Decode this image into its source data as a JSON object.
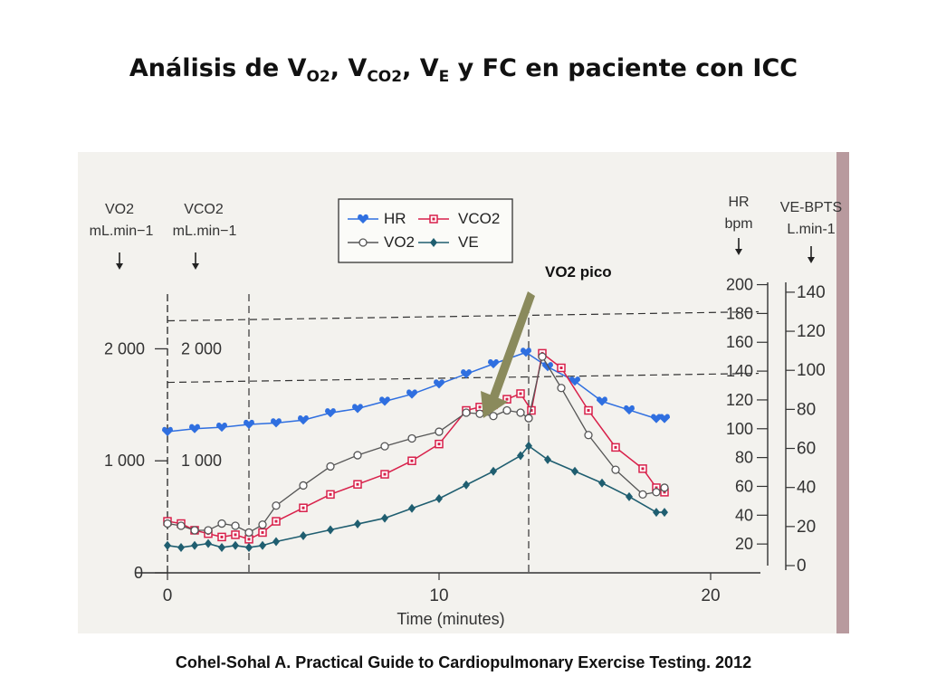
{
  "slide": {
    "title_parts": [
      "Análisis de V",
      "O2",
      ", V",
      "CO2",
      ", V",
      "E",
      " y FC en paciente con ICC"
    ],
    "citation": "Cohel-Sohal A. Practical Guide to Cardiopulmonary Exercise Testing. 2012",
    "annotation": "VO2 pico"
  },
  "colors": {
    "hr": "#2f6fe0",
    "vco2": "#d8204a",
    "vo2": "#555555",
    "ve": "#1f5e70",
    "arrow": "#8a8a5c",
    "scan_bg": "#f3f2ee",
    "page_edge": "#b89a9e"
  },
  "chart_data": {
    "type": "line",
    "xlabel": "Time (minutes)",
    "x_ticks": [
      "0",
      "10",
      "20"
    ],
    "xlim": [
      0,
      22
    ],
    "legend": {
      "placement": "top-center",
      "entries": [
        "HR",
        "VCO2",
        "VO2",
        "VE"
      ]
    },
    "axes": {
      "vo2": {
        "header": [
          "VO2",
          "mL.min−1"
        ],
        "ticks": [
          "2 000",
          "1 000",
          "0"
        ],
        "ylim": [
          0,
          2650
        ]
      },
      "vco2": {
        "header": [
          "VCO2",
          "mL.min−1"
        ],
        "ticks": [
          "2 000",
          "1 000"
        ],
        "ylim": [
          0,
          2650
        ]
      },
      "hr": {
        "header": [
          "HR",
          "bpm"
        ],
        "ticks": [
          "200",
          "180",
          "160",
          "140",
          "120",
          "100",
          "80",
          "60",
          "40",
          "20"
        ],
        "ylim": [
          0,
          206
        ]
      },
      "ve": {
        "header": [
          "VE-BPTS",
          "L.min-1"
        ],
        "ticks": [
          "140",
          "120",
          "100",
          "80",
          "60",
          "40",
          "20",
          "0"
        ],
        "ylim": [
          0,
          152
        ]
      }
    },
    "reference_lines": {
      "x": [
        3,
        13.3
      ],
      "y_vo2": [
        2250,
        1700
      ]
    },
    "series": [
      {
        "name": "HR",
        "axis": "hr",
        "x": [
          0,
          1,
          2,
          3,
          4,
          5,
          6,
          7,
          8,
          9,
          10,
          11,
          12,
          13.2,
          14,
          15,
          16,
          17,
          18,
          18.3
        ],
        "y": [
          98,
          100,
          101,
          103,
          104,
          106,
          111,
          114,
          119,
          124,
          131,
          138,
          145,
          153,
          143,
          133,
          119,
          113,
          107,
          107
        ]
      },
      {
        "name": "VCO2",
        "axis": "vco2",
        "x": [
          0,
          0.5,
          1,
          1.5,
          2,
          2.5,
          3,
          3.5,
          4,
          5,
          6,
          7,
          8,
          9,
          10,
          11,
          11.5,
          12,
          12.5,
          13,
          13.4,
          13.8,
          14.5,
          15.5,
          16.5,
          17.5,
          18,
          18.3
        ],
        "y": [
          460,
          440,
          380,
          350,
          320,
          340,
          300,
          360,
          460,
          580,
          700,
          790,
          880,
          1000,
          1150,
          1450,
          1480,
          1500,
          1550,
          1600,
          1450,
          1960,
          1830,
          1450,
          1120,
          930,
          760,
          720
        ]
      },
      {
        "name": "VO2",
        "axis": "vo2",
        "x": [
          0,
          0.5,
          1,
          1.5,
          2,
          2.5,
          3,
          3.5,
          4,
          5,
          6,
          7,
          8,
          9,
          10,
          11,
          11.5,
          12,
          12.5,
          13,
          13.3,
          13.8,
          14.5,
          15.5,
          16.5,
          17.5,
          18,
          18.3
        ],
        "y": [
          440,
          420,
          380,
          380,
          440,
          420,
          360,
          430,
          600,
          780,
          950,
          1050,
          1130,
          1200,
          1260,
          1430,
          1420,
          1400,
          1450,
          1430,
          1380,
          1930,
          1650,
          1230,
          920,
          700,
          720,
          760
        ]
      },
      {
        "name": "VE",
        "axis": "ve",
        "x": [
          0,
          0.5,
          1,
          1.5,
          2,
          2.5,
          3,
          3.5,
          4,
          5,
          6,
          7,
          8,
          9,
          10,
          11,
          12,
          13,
          13.3,
          14,
          15,
          16,
          17,
          18,
          18.3
        ],
        "y": [
          14,
          13,
          14,
          15,
          13,
          14,
          13,
          14,
          16,
          19,
          22,
          25,
          28,
          33,
          38,
          45,
          52,
          60,
          65,
          58,
          52,
          46,
          39,
          31,
          31
        ]
      }
    ]
  }
}
